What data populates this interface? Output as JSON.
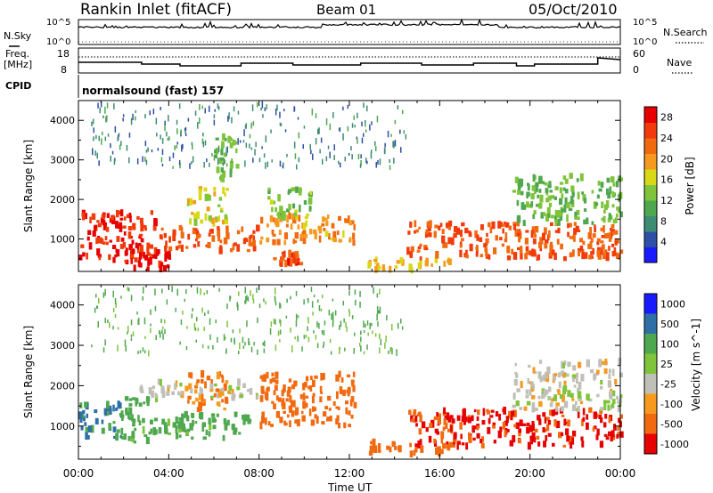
{
  "header": {
    "title": "Rankin Inlet (fitACF)",
    "beam": "Beam 01",
    "date": "05/Oct/2010"
  },
  "top_panels": {
    "nsky_label": "N.Sky",
    "nsky_ticks": [
      "10^5",
      "10^0"
    ],
    "nsearch_label": "N.Search",
    "nsearch_ticks": [
      "10^5",
      "10^0"
    ],
    "freq_label_1": "Freq.",
    "freq_label_2": "[MHz]",
    "freq_ticks": [
      "18",
      "8"
    ],
    "nave_label": "Nave",
    "nave_ticks": [
      "60",
      "0"
    ],
    "cpid_label": "CPID",
    "cpid_value": "normalsound (fast) 157"
  },
  "colors": {
    "power": [
      "#1a1aff",
      "#2e4fa6",
      "#3d8c73",
      "#4fa84f",
      "#7fc43a",
      "#d8d818",
      "#f59a1e",
      "#f26a10",
      "#f23a0a",
      "#e60000"
    ],
    "velocity": [
      "#e60000",
      "#f26a10",
      "#f59a1e",
      "#c0c0b8",
      "#7fc43a",
      "#4fa84f",
      "#2e6fa6",
      "#1a1aff"
    ]
  },
  "chart_data": [
    {
      "type": "heatmap",
      "title": "",
      "xlabel": "Time UT",
      "ylabel": "Slant Range [km]",
      "xlim": [
        "00:00",
        "24:00"
      ],
      "ylim": [
        180,
        4500
      ],
      "x_ticks": [
        "00:00",
        "04:00",
        "08:00",
        "12:00",
        "16:00",
        "20:00",
        "00:00"
      ],
      "y_ticks": [
        "1000",
        "2000",
        "3000",
        "4000"
      ],
      "colorbar": {
        "label": "Power [dB]",
        "ticks": [
          "4",
          "8",
          "12",
          "16",
          "20",
          "24",
          "28"
        ],
        "range": [
          0,
          30
        ]
      },
      "regions": [
        {
          "t": [
            0.0,
            3.4
          ],
          "r": [
            400,
            1700
          ],
          "value": 27
        },
        {
          "t": [
            2.3,
            4.0
          ],
          "r": [
            200,
            700
          ],
          "value": 29
        },
        {
          "t": [
            3.5,
            8.0
          ],
          "r": [
            700,
            1300
          ],
          "value": 24
        },
        {
          "t": [
            4.8,
            6.6
          ],
          "r": [
            1400,
            2300
          ],
          "value": 16
        },
        {
          "t": [
            8.0,
            12.2
          ],
          "r": [
            900,
            1600
          ],
          "value": 20
        },
        {
          "t": [
            8.3,
            10.3
          ],
          "r": [
            1500,
            2300
          ],
          "value": 13
        },
        {
          "t": [
            8.6,
            9.8
          ],
          "r": [
            350,
            650
          ],
          "value": 25
        },
        {
          "t": [
            12.8,
            16.4
          ],
          "r": [
            200,
            500
          ],
          "value": 18
        },
        {
          "t": [
            14.5,
            24.0
          ],
          "r": [
            500,
            1400
          ],
          "value": 24
        },
        {
          "t": [
            19.2,
            24.0
          ],
          "r": [
            1400,
            2600
          ],
          "value": 12
        },
        {
          "t": [
            6.0,
            7.0
          ],
          "r": [
            2500,
            3600
          ],
          "value": 12
        },
        {
          "t": [
            0.5,
            14.5
          ],
          "r": [
            2800,
            4400
          ],
          "value": 7
        }
      ]
    },
    {
      "type": "heatmap",
      "title": "",
      "xlabel": "Time UT",
      "ylabel": "Slant Range [km]",
      "xlim": [
        "00:00",
        "24:00"
      ],
      "ylim": [
        180,
        4500
      ],
      "x_ticks": [
        "00:00",
        "04:00",
        "08:00",
        "12:00",
        "16:00",
        "20:00",
        "00:00"
      ],
      "y_ticks": [
        "1000",
        "2000",
        "3000",
        "4000"
      ],
      "colorbar": {
        "label": "Velocity [m s^-1]",
        "ticks": [
          "1000",
          "500",
          "100",
          "25",
          "-25",
          "-100",
          "-500",
          "-1000"
        ]
      },
      "regions": [
        {
          "t": [
            0.0,
            2.0
          ],
          "r": [
            700,
            1600
          ],
          "value": 600
        },
        {
          "t": [
            1.8,
            3.4
          ],
          "r": [
            600,
            1700
          ],
          "value": 150
        },
        {
          "t": [
            3.5,
            7.6
          ],
          "r": [
            700,
            1300
          ],
          "value": 150
        },
        {
          "t": [
            4.8,
            6.6
          ],
          "r": [
            1400,
            2300
          ],
          "value": -120
        },
        {
          "t": [
            8.0,
            12.2
          ],
          "r": [
            1000,
            2300
          ],
          "value": -200
        },
        {
          "t": [
            2.4,
            8.0
          ],
          "r": [
            1700,
            2100
          ],
          "value": 0
        },
        {
          "t": [
            12.8,
            16.6
          ],
          "r": [
            300,
            600
          ],
          "value": -300
        },
        {
          "t": [
            14.5,
            24.0
          ],
          "r": [
            500,
            1400
          ],
          "value": -600
        },
        {
          "t": [
            19.2,
            24.0
          ],
          "r": [
            1400,
            2600
          ],
          "value": 0
        },
        {
          "t": [
            0.5,
            14.5
          ],
          "r": [
            2800,
            4400
          ],
          "value": 120
        }
      ]
    }
  ]
}
